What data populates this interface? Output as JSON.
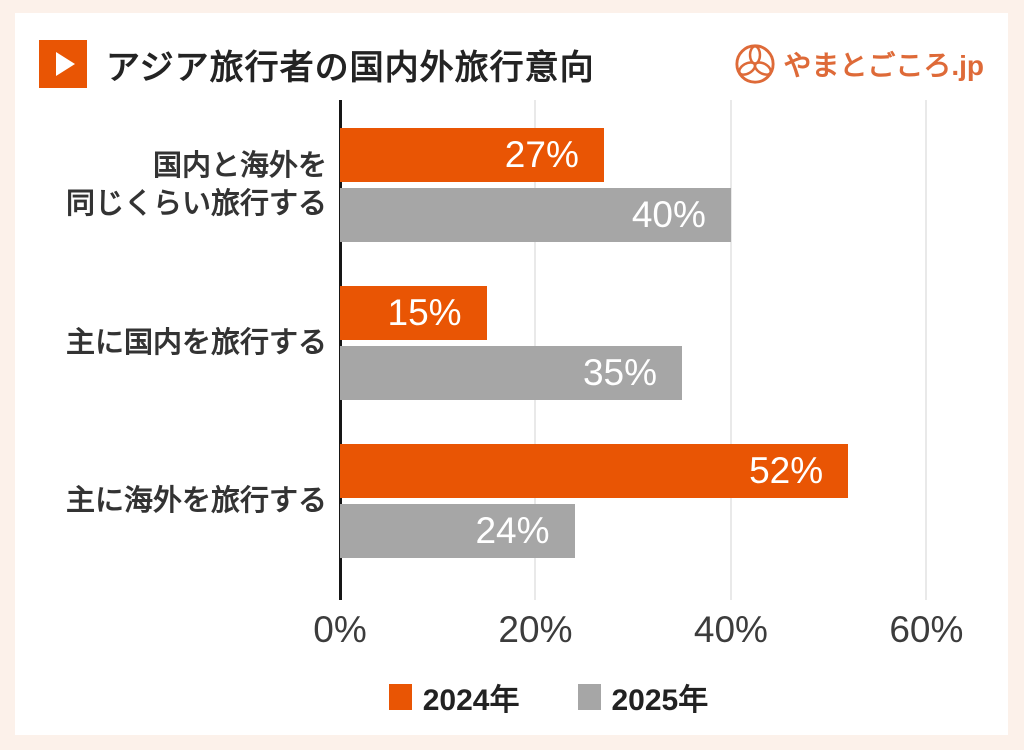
{
  "page": {
    "background_color": "#fcf1ea",
    "card_color": "#ffffff"
  },
  "header": {
    "title": "アジア旅行者の国内外旅行意向",
    "accent_color": "#e95504",
    "brand": {
      "name": "やまとごころ.jp",
      "color": "#de6a38"
    }
  },
  "chart_data": {
    "type": "bar",
    "orientation": "horizontal",
    "title": "アジア旅行者の国内外旅行意向",
    "categories": [
      "国内と海外を\n同じくらい旅行する",
      "主に国内を旅行する",
      "主に海外を旅行する"
    ],
    "series": [
      {
        "name": "2024年",
        "color": "#e95504",
        "values": [
          27,
          15,
          52
        ]
      },
      {
        "name": "2025年",
        "color": "#a6a6a6",
        "values": [
          40,
          35,
          24
        ]
      }
    ],
    "value_suffix": "%",
    "xlim": [
      0,
      66
    ],
    "x_ticks": [
      0,
      20,
      40,
      60
    ],
    "x_tick_labels": [
      "0%",
      "20%",
      "40%",
      "60%"
    ],
    "grid": "vertical-light-gridlines",
    "legend_position": "bottom"
  }
}
